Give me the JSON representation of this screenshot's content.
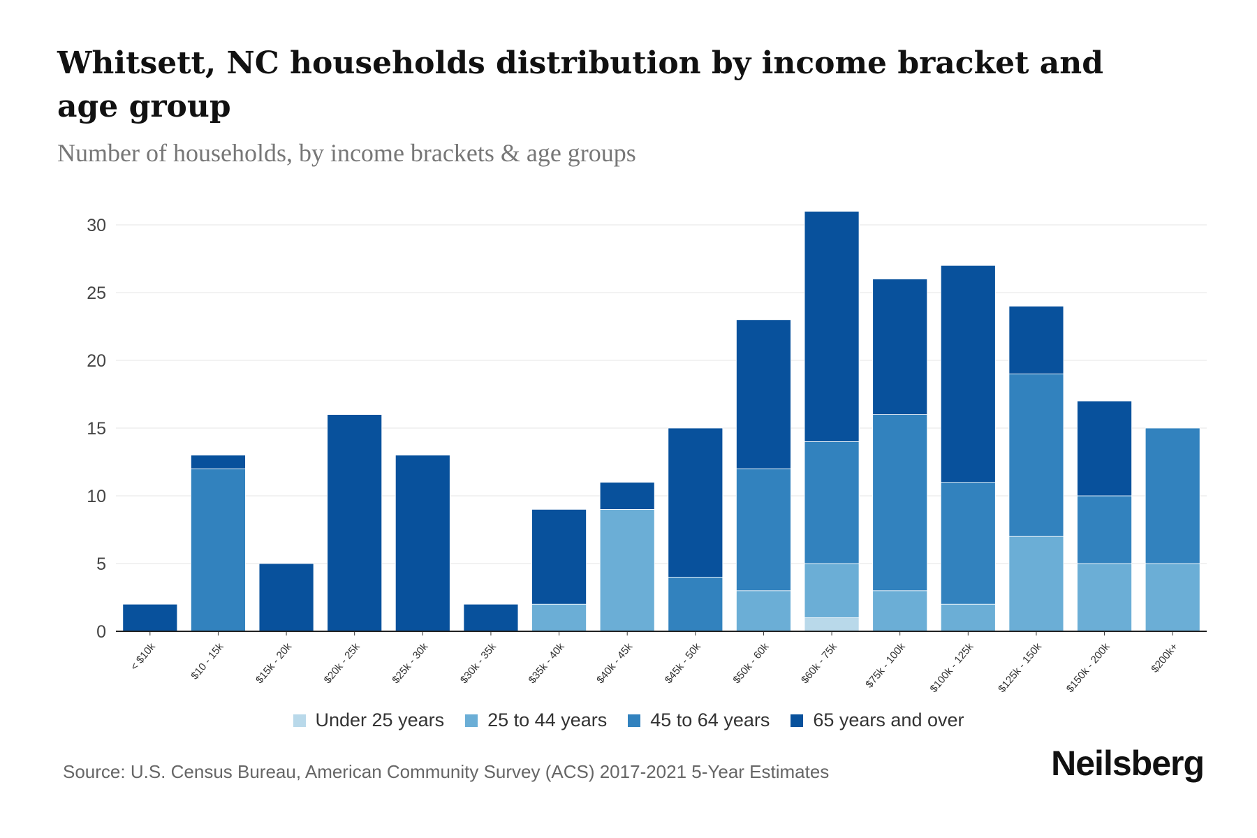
{
  "chart_data": {
    "type": "bar",
    "stacked": true,
    "title": "Whitsett, NC households distribution by income bracket and age group",
    "subtitle": "Number of households, by income brackets & age groups",
    "xlabel": "",
    "ylabel": "",
    "ylim": [
      0,
      31
    ],
    "yticks": [
      0,
      5,
      10,
      15,
      20,
      25,
      30
    ],
    "grid": true,
    "legend_position": "bottom",
    "categories": [
      "< $10k",
      "$10 - 15k",
      "$15k - 20k",
      "$20k - 25k",
      "$25k - 30k",
      "$30k - 35k",
      "$35k - 40k",
      "$40k - 45k",
      "$45k - 50k",
      "$50k - 60k",
      "$60k - 75k",
      "$75k - 100k",
      "$100k - 125k",
      "$125k - 150k",
      "$150k - 200k",
      "$200k+"
    ],
    "series": [
      {
        "name": "Under 25 years",
        "color": "#b9d9ea",
        "values": [
          0,
          0,
          0,
          0,
          0,
          0,
          0,
          0,
          0,
          0,
          1,
          0,
          0,
          0,
          0,
          0
        ]
      },
      {
        "name": "25 to 44 years",
        "color": "#6baed6",
        "values": [
          0,
          0,
          0,
          0,
          0,
          0,
          2,
          9,
          0,
          3,
          4,
          3,
          2,
          7,
          5,
          5
        ]
      },
      {
        "name": "45 to 64 years",
        "color": "#3282be",
        "values": [
          0,
          12,
          0,
          0,
          0,
          0,
          0,
          0,
          4,
          9,
          9,
          13,
          9,
          12,
          5,
          10
        ]
      },
      {
        "name": "65 years and over",
        "color": "#08519c",
        "values": [
          2,
          1,
          5,
          16,
          13,
          2,
          7,
          2,
          11,
          11,
          17,
          10,
          16,
          5,
          7,
          0
        ]
      }
    ]
  },
  "source": "Source: U.S. Census Bureau, American Community Survey (ACS) 2017-2021 5-Year Estimates",
  "logo": "Neilsberg"
}
